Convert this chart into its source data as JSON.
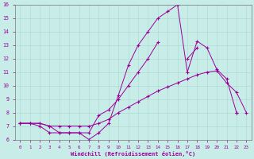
{
  "xlabel": "Windchill (Refroidissement éolien,°C)",
  "background_color": "#c8ede8",
  "line_color": "#990099",
  "xlim": [
    -0.5,
    23.5
  ],
  "ylim": [
    6,
    16
  ],
  "xticks": [
    0,
    1,
    2,
    3,
    4,
    5,
    6,
    7,
    8,
    9,
    10,
    11,
    12,
    13,
    14,
    15,
    16,
    17,
    18,
    19,
    20,
    21,
    22,
    23
  ],
  "yticks": [
    6,
    7,
    8,
    9,
    10,
    11,
    12,
    13,
    14,
    15,
    16
  ],
  "line1_x": [
    0,
    1,
    2,
    3,
    4,
    5,
    6,
    7,
    8,
    9,
    10,
    11,
    12,
    13,
    14,
    15,
    16,
    17,
    18,
    19,
    20,
    21,
    22
  ],
  "line1_y": [
    7.2,
    7.2,
    7.2,
    7.0,
    6.5,
    6.5,
    6.5,
    6.0,
    6.5,
    7.2,
    9.3,
    11.5,
    13.0,
    14.0,
    15.0,
    15.5,
    16.0,
    11.0,
    13.3,
    12.8,
    11.2,
    10.5,
    8.0
  ],
  "line2_x": [
    0,
    1,
    2,
    3,
    4,
    5,
    6,
    7,
    8,
    9,
    10,
    11,
    12,
    13,
    14,
    15,
    16,
    17,
    18,
    19,
    20,
    21,
    22,
    23
  ],
  "line2_y": [
    7.2,
    7.2,
    7.2,
    7.0,
    7.0,
    7.0,
    7.0,
    7.0,
    7.2,
    7.5,
    8.0,
    8.4,
    8.8,
    9.2,
    9.6,
    9.9,
    10.2,
    10.5,
    10.8,
    11.0,
    11.1,
    10.2,
    9.5,
    8.0
  ],
  "line3_x": [
    0,
    1,
    2,
    3,
    4,
    5,
    6,
    7,
    8,
    9,
    10,
    11,
    12,
    13,
    14,
    15,
    16,
    17,
    18,
    19,
    20,
    21,
    22,
    23
  ],
  "line3_y": [
    7.2,
    7.2,
    7.0,
    6.5,
    6.5,
    6.5,
    6.5,
    6.5,
    7.8,
    8.2,
    9.0,
    10.0,
    11.0,
    12.0,
    13.2,
    null,
    null,
    12.0,
    12.8,
    null,
    null,
    null,
    8.0,
    null
  ]
}
